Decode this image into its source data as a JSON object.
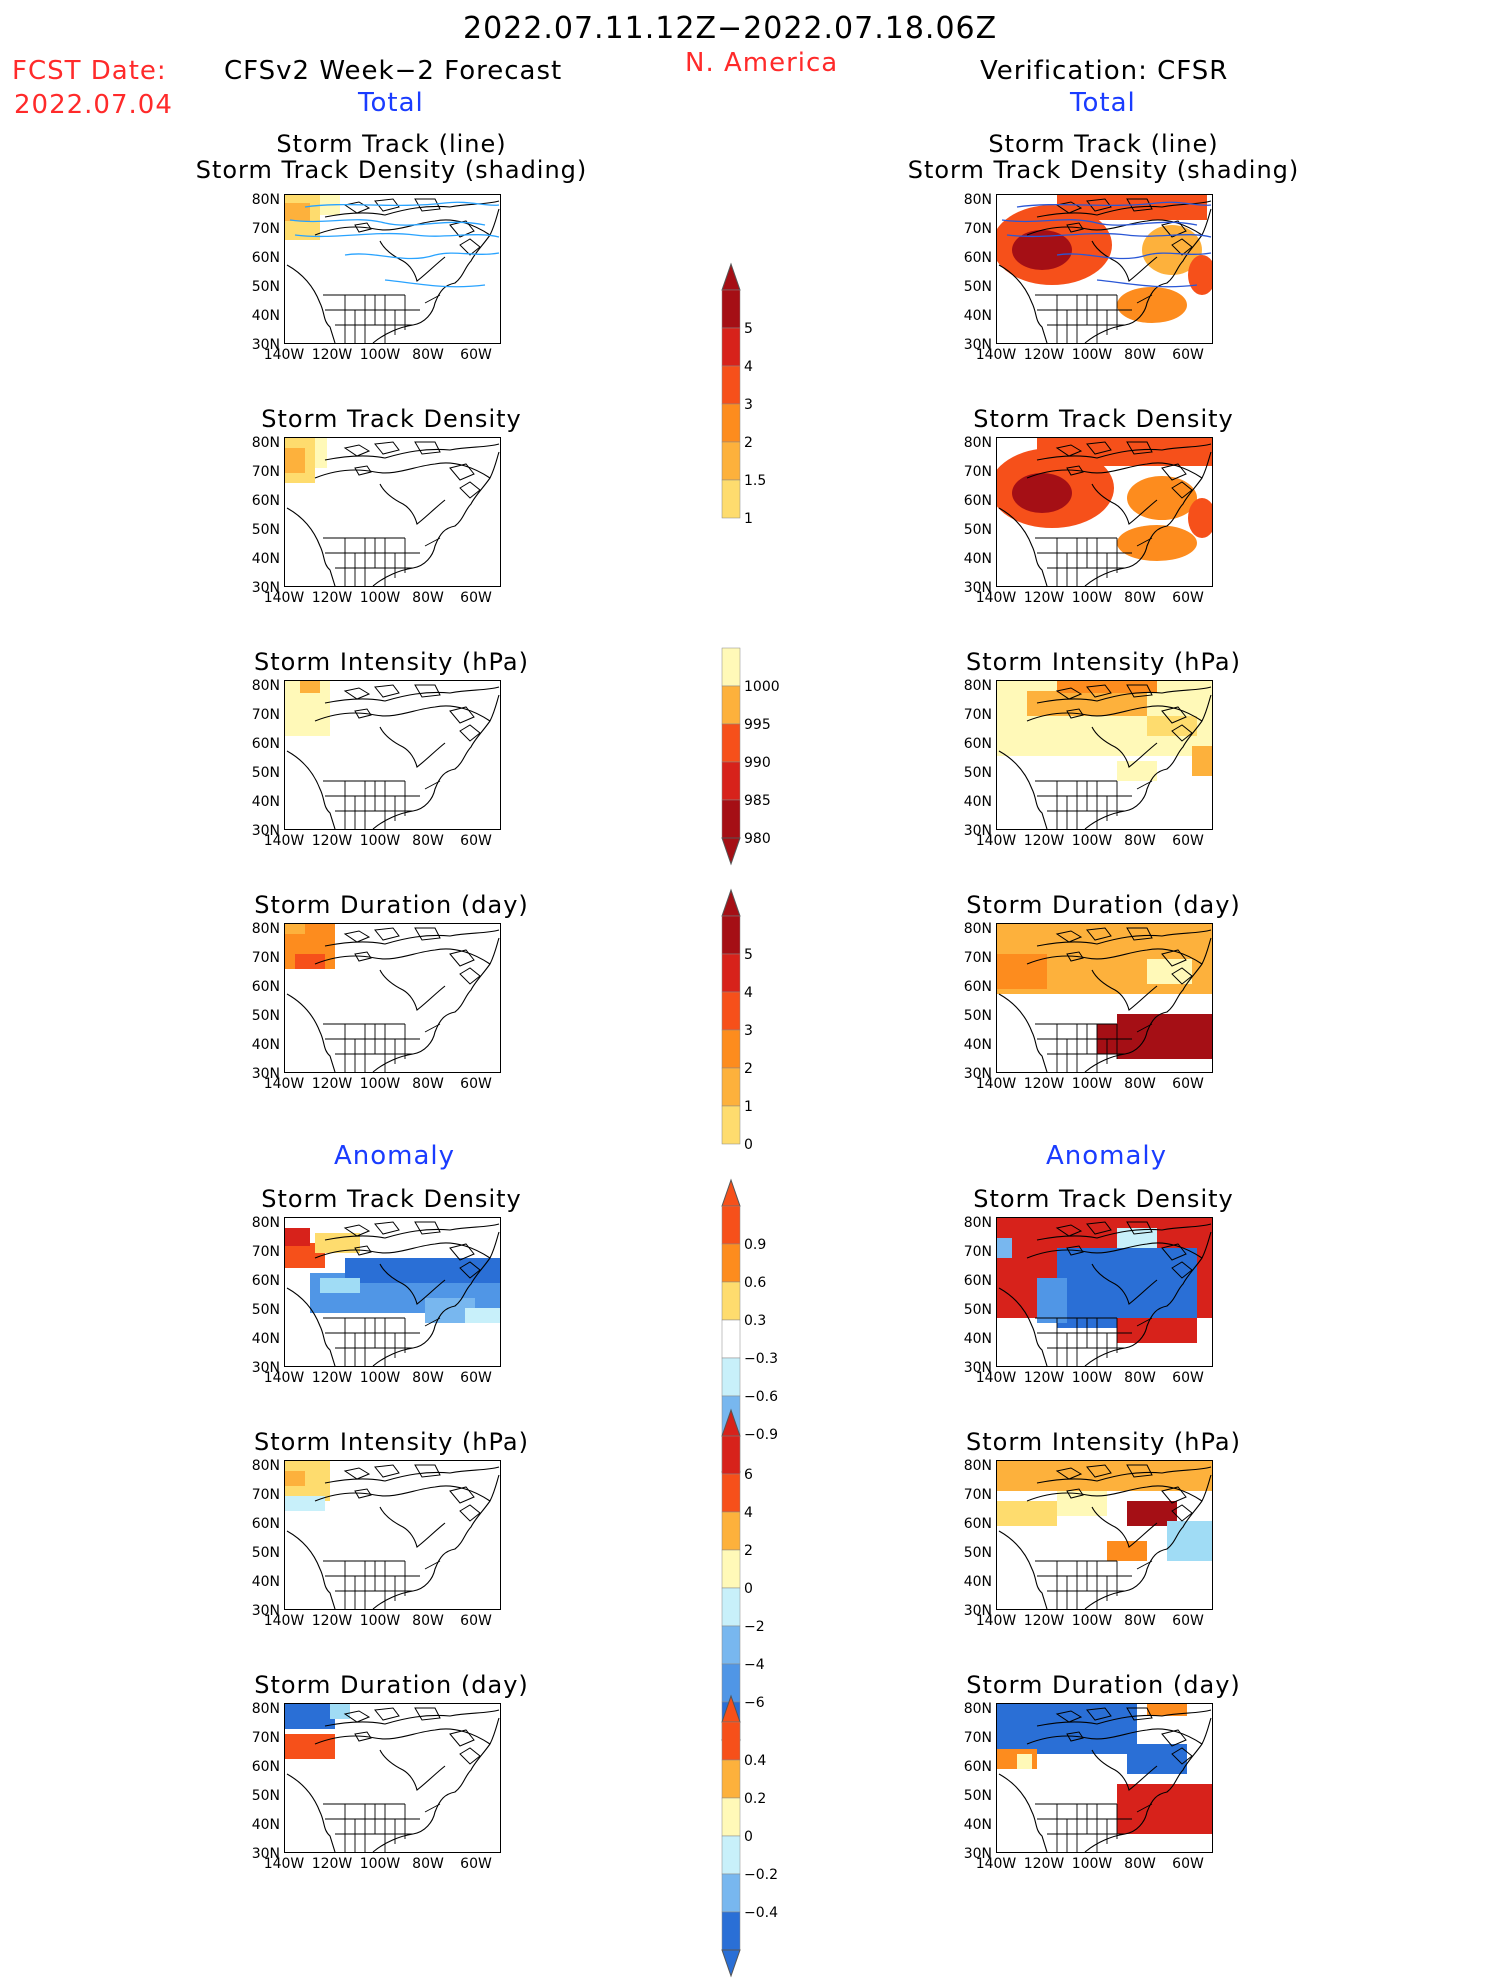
{
  "header": {
    "period": "2022.07.11.12Z−2022.07.18.06Z",
    "region": "N. America",
    "fcst_label": "FCST Date:",
    "fcst_date": "2022.07.04",
    "left_model": "CFSv2 Week−2 Forecast",
    "right_model": "Verification: CFSR",
    "total": "Total",
    "anomaly": "Anomaly"
  },
  "panels": {
    "track_line_1": "Storm Track (line)",
    "track_line_2": "Storm Track Density (shading)",
    "density": "Storm Track Density",
    "intensity": "Storm Intensity (hPa)",
    "duration": "Storm Duration (day)"
  },
  "axes": {
    "lat": [
      "80N",
      "70N",
      "60N",
      "50N",
      "40N",
      "30N"
    ],
    "lon": [
      "140W",
      "120W",
      "100W",
      "80W",
      "60W"
    ]
  },
  "colorbars": {
    "density_total": [
      "5",
      "4",
      "3",
      "2",
      "1.5",
      "1"
    ],
    "intensity_total": [
      "1000",
      "995",
      "990",
      "985",
      "980"
    ],
    "duration_total": [
      "5",
      "4",
      "3",
      "2",
      "1",
      "0"
    ],
    "density_anom": [
      "0.9",
      "0.6",
      "0.3",
      "−0.3",
      "−0.6",
      "−0.9"
    ],
    "intensity_anom": [
      "6",
      "4",
      "2",
      "0",
      "−2",
      "−4",
      "−6"
    ],
    "duration_anom": [
      "0.4",
      "0.2",
      "0",
      "−0.2",
      "−0.4"
    ]
  },
  "colors": {
    "warm": [
      "#fff9b8",
      "#fedc6e",
      "#fdb13c",
      "#fd8c1e",
      "#f6501a",
      "#d7221b",
      "#a50f15"
    ],
    "cool": [
      "#c8f0fa",
      "#a0dcf5",
      "#78b7ef",
      "#5096e6",
      "#2a6fd6",
      "#1f55c2"
    ]
  }
}
